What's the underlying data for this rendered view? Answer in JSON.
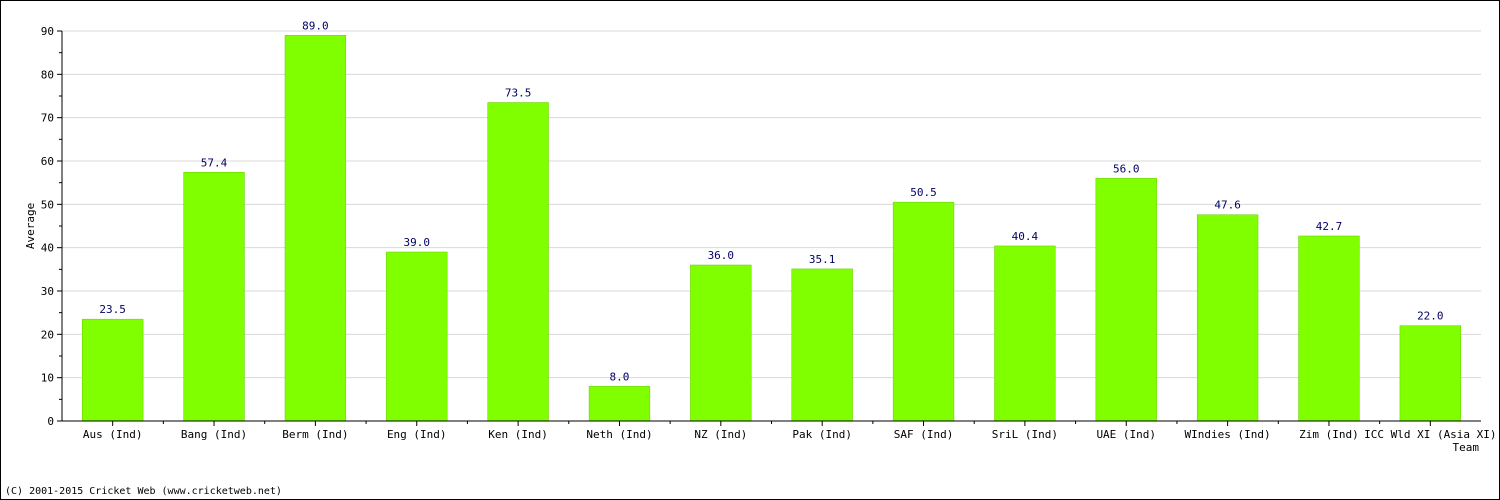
{
  "chart_data": {
    "type": "bar",
    "categories": [
      "Aus (Ind)",
      "Bang (Ind)",
      "Berm (Ind)",
      "Eng (Ind)",
      "Ken (Ind)",
      "Neth (Ind)",
      "NZ (Ind)",
      "Pak (Ind)",
      "SAF (Ind)",
      "SriL (Ind)",
      "UAE (Ind)",
      "WIndies (Ind)",
      "Zim (Ind)",
      "ICC Wld XI (Asia XI)"
    ],
    "values": [
      23.5,
      57.4,
      89.0,
      39.0,
      73.5,
      8.0,
      36.0,
      35.1,
      50.5,
      40.4,
      56.0,
      47.6,
      42.7,
      22.0
    ],
    "value_labels": [
      "23.5",
      "57.4",
      "89.0",
      "39.0",
      "73.5",
      "8.0",
      "36.0",
      "35.1",
      "50.5",
      "40.4",
      "56.0",
      "47.6",
      "42.7",
      "22.0"
    ],
    "title": "",
    "xlabel": "Team",
    "ylabel": "Average",
    "ylim": [
      0,
      90
    ],
    "yticks": [
      0,
      10,
      20,
      30,
      40,
      50,
      60,
      70,
      80,
      90
    ],
    "grid": true,
    "bar_color": "#80ff00",
    "label_color": "#000066"
  },
  "footer": {
    "copyright": "(C) 2001-2015 Cricket Web (www.cricketweb.net)"
  }
}
